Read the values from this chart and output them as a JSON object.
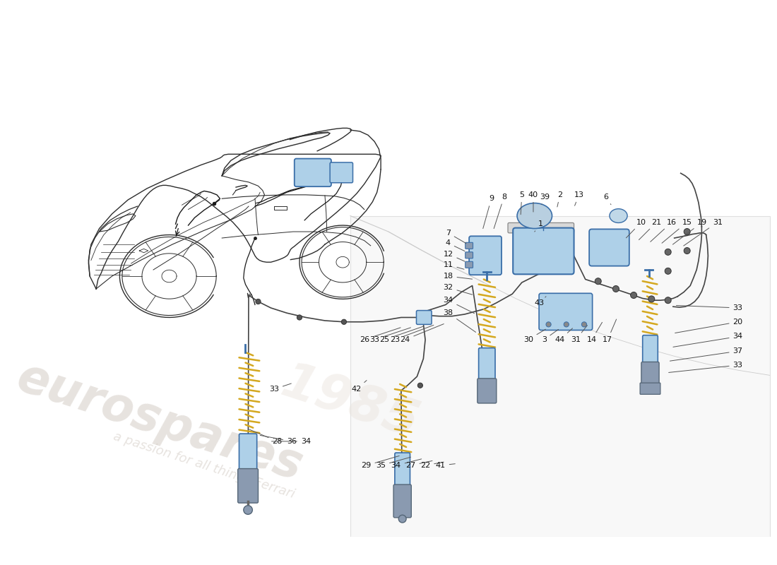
{
  "bg": "#ffffff",
  "car_color": "#2d2d2d",
  "car_lw": 1.0,
  "blue": "#7ab4d8",
  "blue_dark": "#3a6ea8",
  "blue_light": "#aed0e8",
  "gray_part": "#8a9ab0",
  "gray_mount": "#999999",
  "spring_gold": "#d4a820",
  "line_color": "#333333",
  "ann_color": "#111111",
  "ann_fs": 8,
  "hose_color": "#444444",
  "hose_lw": 1.2,
  "wm_color": "#d0c8c0",
  "wm_alpha": 0.5
}
